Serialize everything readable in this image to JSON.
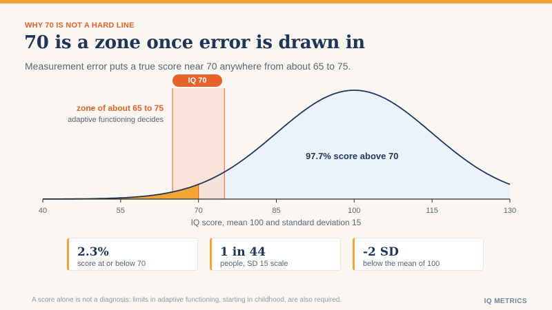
{
  "header": {
    "kicker": "WHY 70 IS NOT A HARD LINE",
    "title": "70 is a zone once error is drawn in",
    "subtitle": "Measurement error puts a true score near 70 anywhere from about 65 to 75."
  },
  "annotations": {
    "zone_title": "zone of about 65 to 75",
    "zone_sub": "adaptive functioning decides",
    "marker_label": "IQ 70",
    "above_label": "97.7% score above 70"
  },
  "stats": [
    {
      "value": "2.3%",
      "caption": "score at or below 70"
    },
    {
      "value": "1 in 44",
      "caption": "people, SD 15 scale"
    },
    {
      "value": "-2 SD",
      "caption": "below the mean of 100"
    }
  ],
  "footer": {
    "note": "A score alone is not a diagnosis: limits in adaptive functioning, starting in childhood, are also required.",
    "brand": "IQ METRICS"
  },
  "colors": {
    "accent": "#f2a534",
    "orange": "#e5622b",
    "navy": "#1f3558",
    "zone_fill": "#f8dccf",
    "curve_fill": "#ecf2fa"
  },
  "chart_data": {
    "type": "area",
    "distribution": "normal",
    "mean": 100,
    "sd": 15,
    "xlim": [
      40,
      130
    ],
    "xticks": [
      40,
      55,
      70,
      85,
      100,
      115,
      130
    ],
    "xlabel": "IQ score, mean 100 and standard deviation 15",
    "cutoff": 70,
    "zone": [
      65,
      75
    ],
    "share_below_cutoff": 2.3,
    "share_above_cutoff": 97.7,
    "grid": false
  }
}
